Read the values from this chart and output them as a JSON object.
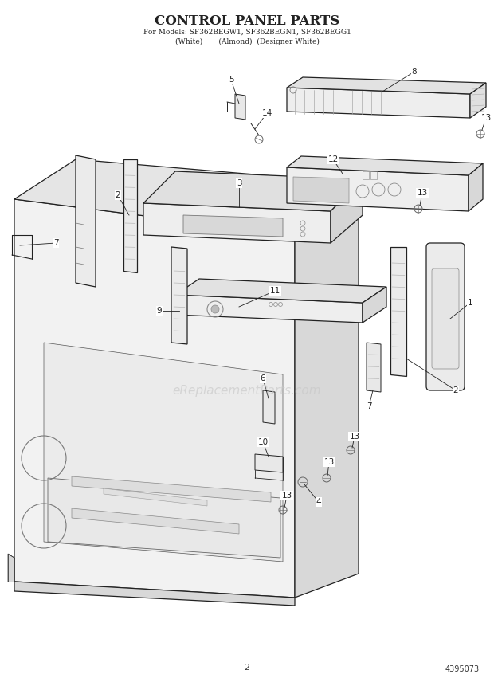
{
  "title": "CONTROL PANEL PARTS",
  "subtitle1": "For Models: SF362BEGW1, SF362BEGN1, SF362BEGG1",
  "subtitle2": "(White)       (Almond)  (Designer White)",
  "page_number": "2",
  "part_number": "4395073",
  "background_color": "#ffffff",
  "line_color": "#222222",
  "lw_main": 0.9,
  "lw_thin": 0.5,
  "watermark_text": "eReplacementParts.com",
  "watermark_color": "#c8c8c8",
  "face_color": "#f2f2f2",
  "top_color": "#e5e5e5",
  "right_color": "#d8d8d8"
}
